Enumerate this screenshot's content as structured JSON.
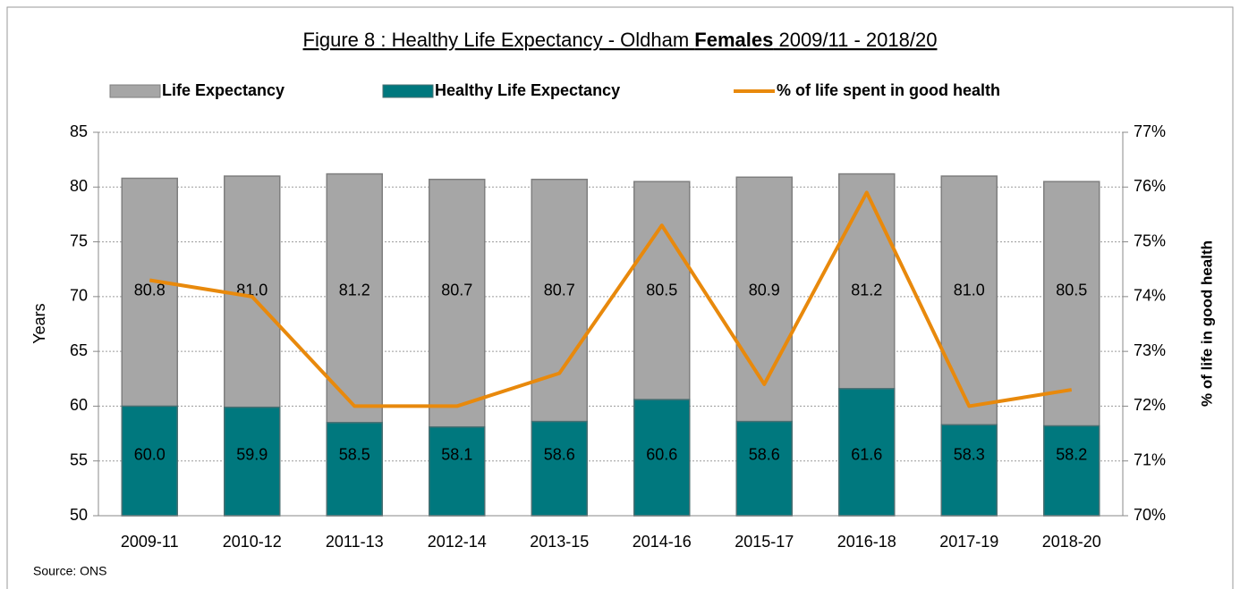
{
  "chart_data": {
    "type": "bar",
    "title_parts": [
      "Figure 8 : Healthy Life Expectancy - Oldham ",
      "Females",
      " 2009/11 - 2018/20"
    ],
    "y_label": "Years",
    "y2_label": "% of life in good health",
    "source": "Source: ONS",
    "categories": [
      "2009-11",
      "2010-12",
      "2011-13",
      "2012-14",
      "2013-15",
      "2014-16",
      "2015-17",
      "2016-18",
      "2017-19",
      "2018-20"
    ],
    "series": [
      {
        "name": "Life Expectancy",
        "type": "bar",
        "color": "#a6a6a6",
        "values": [
          80.8,
          81.0,
          81.2,
          80.7,
          80.7,
          80.5,
          80.9,
          81.2,
          81.0,
          80.5
        ],
        "value_labels": [
          "80.8",
          "81.0",
          "81.2",
          "80.7",
          "80.7",
          "80.5",
          "80.9",
          "81.2",
          "81.0",
          "80.5"
        ]
      },
      {
        "name": "Healthy Life Expectancy",
        "type": "bar",
        "color": "#00787e",
        "values": [
          60.0,
          59.9,
          58.5,
          58.1,
          58.6,
          60.6,
          58.6,
          61.6,
          58.3,
          58.2
        ],
        "value_labels": [
          "60.0",
          "59.9",
          "58.5",
          "58.1",
          "58.6",
          "60.6",
          "58.6",
          "61.6",
          "58.3",
          "58.2"
        ]
      },
      {
        "name": "% of life spent in good health",
        "type": "line",
        "axis": "y2",
        "color": "#e8890c",
        "values": [
          74.3,
          74.0,
          72.0,
          72.0,
          72.6,
          75.3,
          72.4,
          75.9,
          72.0,
          72.3
        ]
      }
    ],
    "ylim": [
      50,
      85
    ],
    "yticks": [
      50,
      55,
      60,
      65,
      70,
      75,
      80,
      85
    ],
    "y2lim": [
      70,
      77
    ],
    "y2ticks": [
      {
        "value": 70,
        "label": "70%"
      },
      {
        "value": 71,
        "label": "71%"
      },
      {
        "value": 72,
        "label": "72%"
      },
      {
        "value": 73,
        "label": "73%"
      },
      {
        "value": 74,
        "label": "74%"
      },
      {
        "value": 75,
        "label": "75%"
      },
      {
        "value": 76,
        "label": "76%"
      },
      {
        "value": 77,
        "label": "77%"
      }
    ],
    "grid": true,
    "legend": "top"
  }
}
